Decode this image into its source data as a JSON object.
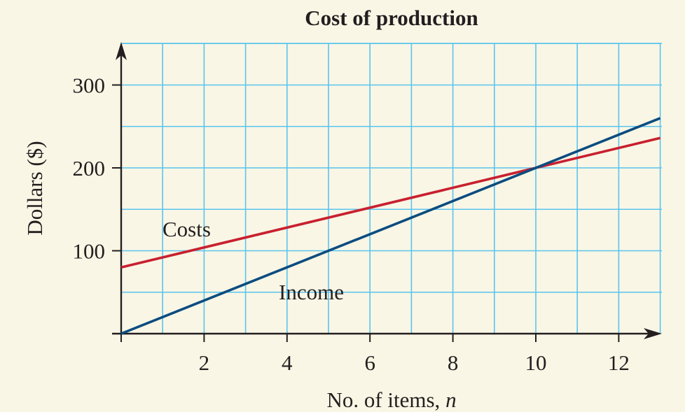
{
  "chart_data": {
    "type": "line",
    "title": "Cost of production",
    "xlabel": "No. of items, ",
    "xlabel_var": "n",
    "ylabel": "Dollars ($)",
    "xlim": [
      0,
      13
    ],
    "ylim": [
      0,
      300
    ],
    "x_ticks": [
      2,
      4,
      6,
      8,
      10,
      12
    ],
    "y_ticks": [
      100,
      200,
      300
    ],
    "grid": true,
    "background": "#f9f6e5",
    "grid_color": "#5bc4ef",
    "series": [
      {
        "name": "Costs",
        "color": "#c8202f",
        "x": [
          0,
          13
        ],
        "y": [
          80,
          236
        ]
      },
      {
        "name": "Income",
        "color": "#0b4c80",
        "x": [
          0,
          13
        ],
        "y": [
          0,
          260
        ]
      }
    ]
  }
}
